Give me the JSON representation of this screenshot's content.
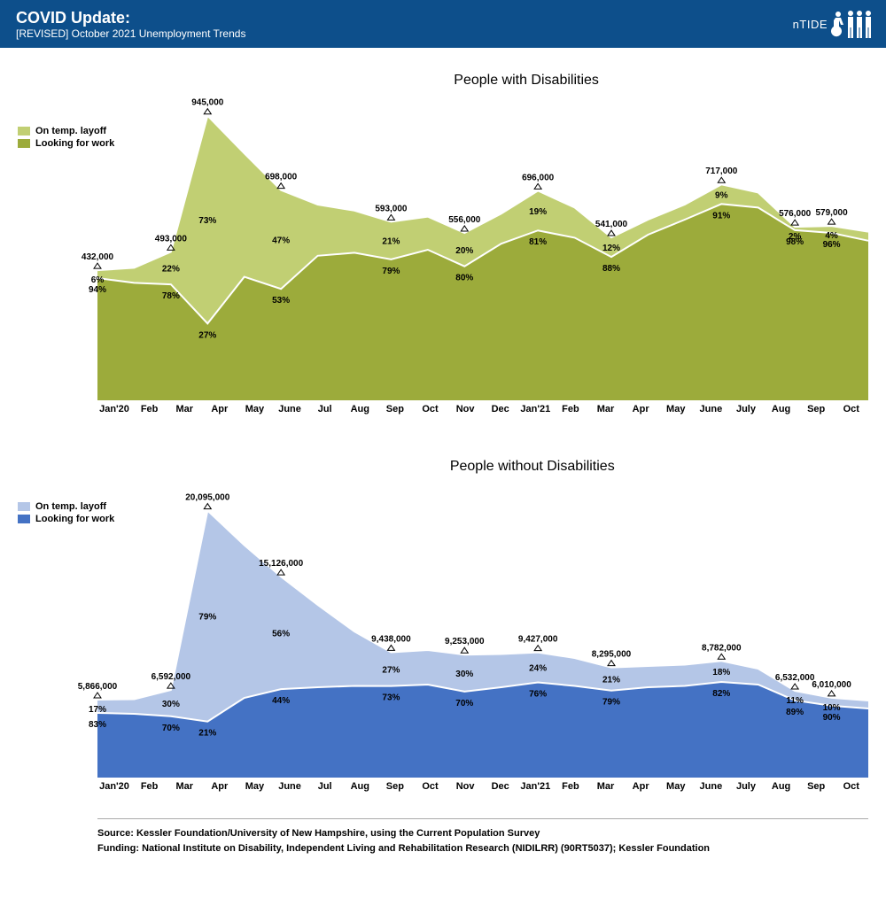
{
  "header": {
    "title": "COVID Update:",
    "subtitle": "[REVISED] October 2021 Unemployment Trends",
    "logo_text": "nTIDE"
  },
  "months": [
    "Jan'20",
    "Feb",
    "Mar",
    "Apr",
    "May",
    "June",
    "Jul",
    "Aug",
    "Sep",
    "Oct",
    "Nov",
    "Dec",
    "Jan'21",
    "Feb",
    "Mar",
    "Apr",
    "May",
    "June",
    "July",
    "Aug",
    "Sep",
    "Oct"
  ],
  "legend": {
    "layoff": "On temp. layoff",
    "looking": "Looking for work"
  },
  "chart_a": {
    "title": "People with Disabilities",
    "colors": {
      "layoff": "#c1cf73",
      "looking": "#9cab3b",
      "line": "#ffffff"
    },
    "ymax": 1000000,
    "totals": [
      432000,
      440000,
      493000,
      945000,
      820000,
      698000,
      650000,
      630000,
      593000,
      610000,
      556000,
      620000,
      696000,
      640000,
      541000,
      600000,
      650000,
      717000,
      690000,
      576000,
      579000,
      560000
    ],
    "looking": [
      406000,
      390000,
      385000,
      255000,
      410000,
      370000,
      480000,
      490000,
      468000,
      500000,
      445000,
      520000,
      564000,
      540000,
      476000,
      550000,
      600000,
      652000,
      640000,
      565000,
      556000,
      530000
    ],
    "total_labels": {
      "0": "432,000",
      "2": "493,000",
      "3": "945,000",
      "5": "698,000",
      "8": "593,000",
      "10": "556,000",
      "12": "696,000",
      "14": "541,000",
      "17": "717,000",
      "19": "576,000",
      "20": "579,000"
    },
    "layoff_pct": {
      "0": "6%",
      "2": "22%",
      "3": "73%",
      "5": "47%",
      "8": "21%",
      "10": "20%",
      "12": "19%",
      "14": "12%",
      "17": "9%",
      "19": "2%",
      "20": "4%"
    },
    "looking_pct": {
      "0": "94%",
      "2": "78%",
      "3": "27%",
      "5": "53%",
      "8": "79%",
      "10": "80%",
      "12": "81%",
      "14": "88%",
      "17": "91%",
      "19": "98%",
      "20": "96%"
    }
  },
  "chart_b": {
    "title": "People without Disabilities",
    "colors": {
      "layoff": "#b4c6e7",
      "looking": "#4472c4",
      "line": "#ffffff"
    },
    "ymax": 22000000,
    "totals": [
      5866000,
      5900000,
      6592000,
      20095000,
      17500000,
      15126000,
      13000000,
      11000000,
      9438000,
      9600000,
      9253000,
      9300000,
      9427000,
      9000000,
      8295000,
      8400000,
      8500000,
      8782000,
      8200000,
      6532000,
      6010000,
      5800000
    ],
    "looking": [
      4869000,
      4800000,
      4614000,
      4220000,
      6000000,
      6655000,
      6800000,
      6900000,
      6890000,
      7000000,
      6477000,
      6800000,
      7165000,
      6900000,
      6553000,
      6800000,
      6900000,
      7201000,
      7000000,
      5813000,
      5409000,
      5200000
    ],
    "total_labels": {
      "0": "5,866,000",
      "2": "6,592,000",
      "3": "20,095,000",
      "5": "15,126,000",
      "8": "9,438,000",
      "10": "9,253,000",
      "12": "9,427,000",
      "14": "8,295,000",
      "17": "8,782,000",
      "19": "6,532,000",
      "20": "6,010,000"
    },
    "layoff_pct": {
      "0": "17%",
      "2": "30%",
      "3": "79%",
      "5": "56%",
      "8": "27%",
      "10": "30%",
      "12": "24%",
      "14": "21%",
      "17": "18%",
      "19": "11%",
      "20": "10%"
    },
    "looking_pct": {
      "0": "83%",
      "2": "70%",
      "3": "21%",
      "5": "44%",
      "8": "73%",
      "10": "70%",
      "12": "76%",
      "14": "79%",
      "17": "82%",
      "19": "89%",
      "20": "90%"
    }
  },
  "footer": {
    "source": "Source: Kessler Foundation/University of New Hampshire, using the Current Population Survey",
    "funding": "Funding: National Institute on Disability, Independent Living and Rehabilitation Research (NIDILRR) (90RT5037); Kessler Foundation"
  }
}
